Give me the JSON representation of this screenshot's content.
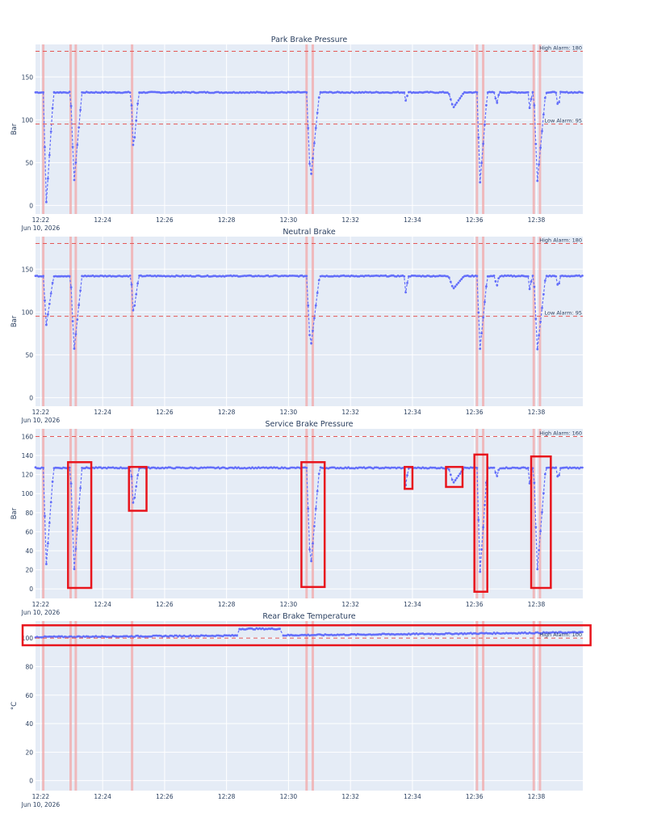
{
  "colors": {
    "series": "#636efa",
    "alarm": "#e45756",
    "event_band": "#f2a8a8",
    "highlight": "#e8141c",
    "plot_bg": "#e5ecf6",
    "grid": "#ffffff",
    "text": "#2a3f5f"
  },
  "chart_data": [
    {
      "type": "line",
      "title": "Park Brake Pressure",
      "ylabel": "Bar",
      "xlim": [
        "12:21:50",
        "12:39:30"
      ],
      "ylim": [
        -10,
        188
      ],
      "y_ticks": [
        0,
        50,
        100,
        150
      ],
      "x_ticks": [
        "12:22",
        "12:24",
        "12:26",
        "12:28",
        "12:30",
        "12:32",
        "12:34",
        "12:36",
        "12:38"
      ],
      "x_subtitle": "Jun 10, 2026",
      "thresholds": [
        {
          "label": "High Alarm: 180",
          "value": 180
        },
        {
          "label": "Low Alarm: 95",
          "value": 95
        }
      ],
      "event_times": [
        "12:22:05",
        "12:22:58",
        "12:23:08",
        "12:24:57",
        "12:30:35",
        "12:30:47",
        "12:36:05",
        "12:36:17",
        "12:37:55",
        "12:38:07"
      ],
      "baseline": 132,
      "series": [
        {
          "x_start": "12:21:50",
          "x_end": "12:39:30",
          "baseline": 132
        }
      ],
      "dips": [
        {
          "start": "12:22:05",
          "end": "12:22:25",
          "min": 4
        },
        {
          "start": "12:22:58",
          "end": "12:23:20",
          "min": 27
        },
        {
          "start": "12:24:55",
          "end": "12:25:10",
          "min": 63
        },
        {
          "start": "12:30:35",
          "end": "12:31:00",
          "min": 28
        },
        {
          "start": "12:33:45",
          "end": "12:33:52",
          "min": 122
        },
        {
          "start": "12:35:10",
          "end": "12:35:40",
          "min": 114
        },
        {
          "start": "12:36:05",
          "end": "12:36:25",
          "min": 27
        },
        {
          "start": "12:36:40",
          "end": "12:36:48",
          "min": 115
        },
        {
          "start": "12:37:45",
          "end": "12:37:52",
          "min": 113
        },
        {
          "start": "12:37:55",
          "end": "12:38:18",
          "min": 28
        },
        {
          "start": "12:38:40",
          "end": "12:38:46",
          "min": 108
        }
      ],
      "highlight_boxes": []
    },
    {
      "type": "line",
      "title": "Neutral Brake",
      "ylabel": "Bar",
      "xlim": [
        "12:21:50",
        "12:39:30"
      ],
      "ylim": [
        -10,
        188
      ],
      "y_ticks": [
        0,
        50,
        100,
        150
      ],
      "x_ticks": [
        "12:22",
        "12:24",
        "12:26",
        "12:28",
        "12:30",
        "12:32",
        "12:34",
        "12:36",
        "12:38"
      ],
      "x_subtitle": "Jun 10, 2026",
      "thresholds": [
        {
          "label": "High Alarm: 180",
          "value": 180
        },
        {
          "label": "Low Alarm: 95",
          "value": 95
        }
      ],
      "event_times": [
        "12:22:05",
        "12:22:58",
        "12:23:08",
        "12:24:57",
        "12:30:35",
        "12:30:47",
        "12:36:05",
        "12:36:17",
        "12:37:55",
        "12:38:07"
      ],
      "baseline": 142,
      "series": [
        {
          "x_start": "12:21:50",
          "x_end": "12:39:30",
          "baseline": 142
        }
      ],
      "dips": [
        {
          "start": "12:22:05",
          "end": "12:22:25",
          "min": 85
        },
        {
          "start": "12:22:58",
          "end": "12:23:20",
          "min": 55
        },
        {
          "start": "12:24:55",
          "end": "12:25:10",
          "min": 97
        },
        {
          "start": "12:30:35",
          "end": "12:31:00",
          "min": 56
        },
        {
          "start": "12:33:45",
          "end": "12:33:52",
          "min": 122
        },
        {
          "start": "12:35:10",
          "end": "12:35:40",
          "min": 127
        },
        {
          "start": "12:36:05",
          "end": "12:36:25",
          "min": 57
        },
        {
          "start": "12:36:40",
          "end": "12:36:48",
          "min": 127
        },
        {
          "start": "12:37:45",
          "end": "12:37:52",
          "min": 126
        },
        {
          "start": "12:37:55",
          "end": "12:38:18",
          "min": 56
        },
        {
          "start": "12:38:40",
          "end": "12:38:46",
          "min": 124
        }
      ],
      "highlight_boxes": []
    },
    {
      "type": "line",
      "title": "Service Brake Pressure",
      "ylabel": "Bar",
      "xlim": [
        "12:21:50",
        "12:39:30"
      ],
      "ylim": [
        -10,
        168
      ],
      "y_ticks": [
        0,
        20,
        40,
        60,
        80,
        100,
        120,
        140,
        160
      ],
      "x_ticks": [
        "12:22",
        "12:24",
        "12:26",
        "12:28",
        "12:30",
        "12:32",
        "12:34",
        "12:36",
        "12:38"
      ],
      "x_subtitle": "Jun 10, 2026",
      "thresholds": [
        {
          "label": "High Alarm: 160",
          "value": 160
        }
      ],
      "event_times": [
        "12:22:05",
        "12:22:58",
        "12:23:08",
        "12:24:57",
        "12:30:35",
        "12:30:47",
        "12:36:05",
        "12:36:17",
        "12:37:55",
        "12:38:07"
      ],
      "baseline": 127,
      "series": [
        {
          "x_start": "12:21:50",
          "x_end": "12:39:30",
          "baseline": 127
        }
      ],
      "dips": [
        {
          "start": "12:22:05",
          "end": "12:22:25",
          "min": 26
        },
        {
          "start": "12:22:58",
          "end": "12:23:20",
          "min": 18
        },
        {
          "start": "12:24:55",
          "end": "12:25:10",
          "min": 86
        },
        {
          "start": "12:30:35",
          "end": "12:31:00",
          "min": 20
        },
        {
          "start": "12:33:45",
          "end": "12:33:52",
          "min": 108
        },
        {
          "start": "12:35:10",
          "end": "12:35:40",
          "min": 111
        },
        {
          "start": "12:36:05",
          "end": "12:36:25",
          "min": 18
        },
        {
          "start": "12:36:40",
          "end": "12:36:48",
          "min": 115
        },
        {
          "start": "12:37:45",
          "end": "12:37:52",
          "min": 110
        },
        {
          "start": "12:37:55",
          "end": "12:38:18",
          "min": 20
        },
        {
          "start": "12:38:40",
          "end": "12:38:46",
          "min": 111
        }
      ],
      "highlight_boxes": [
        {
          "x0": "12:22:53",
          "x1": "12:23:38",
          "y0": 1,
          "y1": 133
        },
        {
          "x0": "12:24:51",
          "x1": "12:25:25",
          "y0": 82,
          "y1": 128
        },
        {
          "x0": "12:30:25",
          "x1": "12:31:10",
          "y0": 2,
          "y1": 133
        },
        {
          "x0": "12:33:45",
          "x1": "12:34:00",
          "y0": 105,
          "y1": 128
        },
        {
          "x0": "12:35:05",
          "x1": "12:35:37",
          "y0": 107,
          "y1": 128
        },
        {
          "x0": "12:36:00",
          "x1": "12:36:25",
          "y0": -3,
          "y1": 141
        },
        {
          "x0": "12:37:50",
          "x1": "12:38:28",
          "y0": 1,
          "y1": 139
        }
      ]
    },
    {
      "type": "line",
      "title": "Rear Brake Temperature",
      "ylabel": "°C",
      "xlim": [
        "12:21:50",
        "12:39:30"
      ],
      "ylim": [
        -7,
        112
      ],
      "y_ticks": [
        0,
        20,
        40,
        60,
        80,
        100
      ],
      "x_ticks": [
        "12:22",
        "12:24",
        "12:26",
        "12:28",
        "12:30",
        "12:32",
        "12:34",
        "12:36",
        "12:38"
      ],
      "x_subtitle": "Jun 10, 2026",
      "thresholds": [
        {
          "label": "High Alarm: 100",
          "value": 100
        }
      ],
      "event_times": [
        "12:22:05",
        "12:22:58",
        "12:23:08",
        "12:24:57",
        "12:30:35",
        "12:30:47",
        "12:36:05",
        "12:36:17",
        "12:37:55",
        "12:38:07"
      ],
      "baseline": 101,
      "series": [
        {
          "x_start": "12:21:50",
          "x_end": "12:28:20",
          "y_start": 100.8,
          "y_end": 101.8
        },
        {
          "x_start": "12:28:25",
          "x_end": "12:29:45",
          "y_start": 106.5,
          "y_end": 106.5
        },
        {
          "x_start": "12:29:50",
          "x_end": "12:39:30",
          "y_start": 102.0,
          "y_end": 104.0
        }
      ],
      "dips": [],
      "highlight_boxes": [
        {
          "x0": "12:21:25",
          "x1": "12:39:45",
          "y0": 95,
          "y1": 109
        }
      ]
    }
  ]
}
